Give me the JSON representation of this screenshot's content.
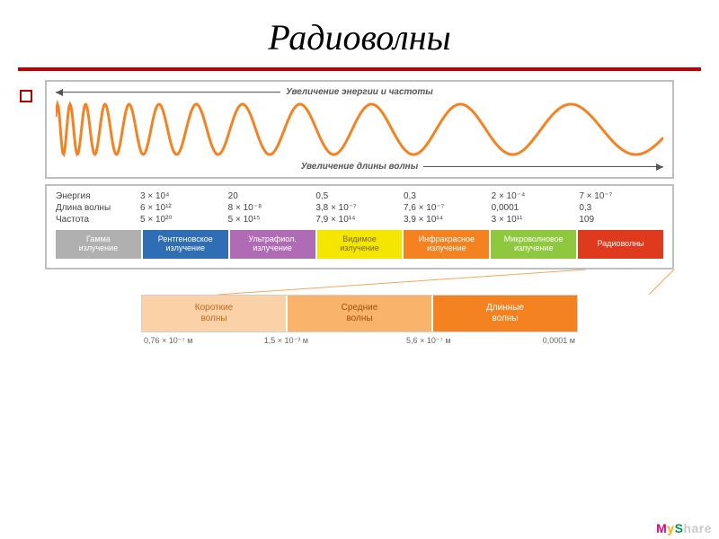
{
  "title": "Радиоволны",
  "wave_panel": {
    "top_arrow_label": "Увеличение энергии  и частоты",
    "bottom_arrow_label": "Увеличение длины волны",
    "wave_color": "#f58220",
    "wave_stroke_width": 3,
    "background": "#ffffff",
    "border_color": "#bfbfbf"
  },
  "data_rows": {
    "labels": [
      "Энергия",
      "Длина волны",
      "Частота"
    ],
    "columns": [
      [
        "3 × 10⁴",
        "6 × 10¹²",
        "5 × 10²⁰"
      ],
      [
        "20",
        "8 × 10⁻⁸",
        "5 × 10¹⁵"
      ],
      [
        "0,5",
        "3,8 × 10⁻⁷",
        "7,9 × 10¹⁴"
      ],
      [
        "0,3",
        "7,6 × 10⁻⁷",
        "3,9 × 10¹⁴"
      ],
      [
        "2 × 10⁻⁴",
        "0,0001",
        "3 × 10¹¹"
      ],
      [
        "7 × 10⁻⁷",
        "0,3",
        "109"
      ]
    ]
  },
  "spectrum_bands": [
    {
      "label_l1": "Гамма",
      "label_l2": "излучение",
      "color": "#b0b0b0"
    },
    {
      "label_l1": "Рентгеновское",
      "label_l2": "излучение",
      "color": "#2f6db5"
    },
    {
      "label_l1": "Ультрафиол.",
      "label_l2": "излучение",
      "color": "#b06bb5"
    },
    {
      "label_l1": "Видимое",
      "label_l2": "излучение",
      "color": "#f5e600"
    },
    {
      "label_l1": "Инфракрасное",
      "label_l2": "излучение",
      "color": "#f58220"
    },
    {
      "label_l1": "Микроволновое",
      "label_l2": "излучение",
      "color": "#8fc73e"
    },
    {
      "label_l1": "Радиоволны",
      "label_l2": "",
      "color": "#e03a1e"
    }
  ],
  "connector_color": "#f5a65a",
  "radio_subbands": [
    {
      "l1": "Короткие",
      "l2": "волны",
      "color": "#fbd2a8",
      "text": "#c06a1a"
    },
    {
      "l1": "Средние",
      "l2": "волны",
      "color": "#f9b36a",
      "text": "#a04f0c"
    },
    {
      "l1": "Длинные",
      "l2": "волны",
      "color": "#f58220",
      "text": "#ffffff"
    }
  ],
  "radio_scale_ticks": [
    {
      "pos_pct": 0,
      "label": "0,76 × 10⁻⁷ м"
    },
    {
      "pos_pct": 33,
      "label": "1,5 × 10⁻³ м"
    },
    {
      "pos_pct": 66,
      "label": "5,6 × 10⁻⁷ м"
    },
    {
      "pos_pct": 100,
      "label": "0,0001 м"
    }
  ],
  "brand": {
    "m": "M",
    "y": "y",
    "s": "S",
    "rest": "hare"
  },
  "colors": {
    "title_rule": "#c00000",
    "bullet_border": "#b00000",
    "panel_border": "#bfbfbf",
    "text_muted": "#555555"
  }
}
